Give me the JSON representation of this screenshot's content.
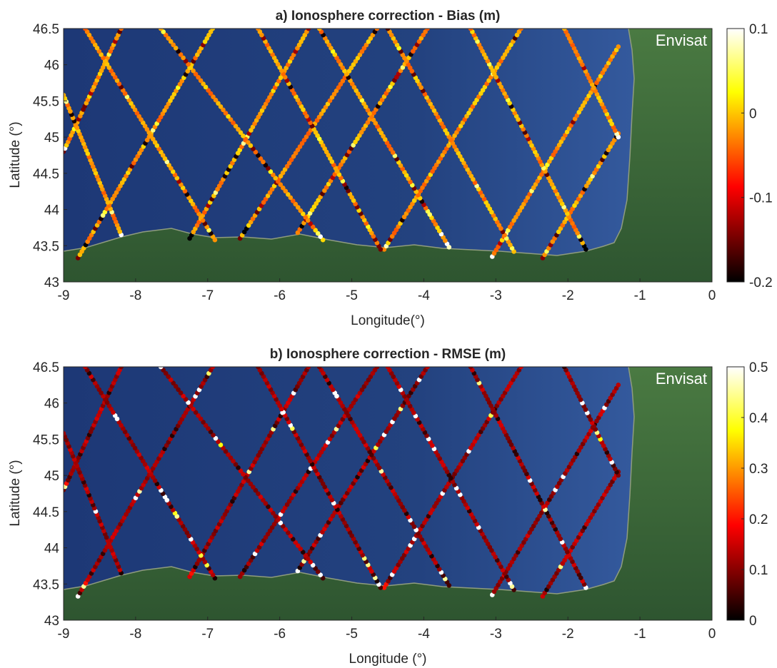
{
  "chart_data": [
    {
      "type": "scatter",
      "title": "a) Ionosphere correction - Bias (m)",
      "xlabel": "Longitude(°)",
      "ylabel": "Latitude (°)",
      "xlim": [
        -9,
        0
      ],
      "ylim": [
        43,
        46.5
      ],
      "xticks": [
        -9,
        -8,
        -7,
        -6,
        -5,
        -4,
        -3,
        -2,
        -1,
        0
      ],
      "yticks": [
        43,
        43.5,
        44,
        44.5,
        45,
        45.5,
        46,
        46.5
      ],
      "xtick_labels": [
        "-9",
        "-8",
        "-7",
        "-6",
        "-5",
        "-4",
        "-3",
        "-2",
        "-1",
        "0"
      ],
      "ytick_labels": [
        "43",
        "43.5",
        "44",
        "44.5",
        "45",
        "45.5",
        "46",
        "46.5"
      ],
      "annotation": "Envisat",
      "colorbar": {
        "ticks": [
          0.1,
          0,
          -0.1,
          -0.2
        ],
        "tick_labels": [
          "0.1",
          "0",
          "-0.1",
          "-0.2"
        ],
        "range": [
          -0.2,
          0.1
        ],
        "colormap": "hot"
      },
      "tracks": [
        {
          "direction": "ascending",
          "lon_south": -8.8,
          "lat_south": 43.33,
          "lon_north": -6.93,
          "lat_north": 46.5
        },
        {
          "direction": "ascending",
          "lon_south": -7.25,
          "lat_south": 43.6,
          "lon_north": -5.6,
          "lat_north": 46.5
        },
        {
          "direction": "ascending",
          "lon_south": -6.55,
          "lat_south": 43.6,
          "lon_north": -4.65,
          "lat_north": 46.5
        },
        {
          "direction": "ascending",
          "lon_south": -5.75,
          "lat_south": 43.68,
          "lon_north": -3.95,
          "lat_north": 46.5
        },
        {
          "direction": "ascending",
          "lon_south": -4.55,
          "lat_south": 43.45,
          "lon_north": -2.65,
          "lat_north": 46.5
        },
        {
          "direction": "ascending",
          "lon_south": -3.05,
          "lat_south": 43.35,
          "lon_north": -1.3,
          "lat_north": 46.25
        },
        {
          "direction": "ascending",
          "lon_south": -2.35,
          "lat_south": 43.33,
          "lon_north": -1.3,
          "lat_north": 45.05
        },
        {
          "direction": "ascending",
          "lon_south": -9.0,
          "lat_south": 44.8,
          "lon_north": -8.2,
          "lat_north": 46.5
        },
        {
          "direction": "descending",
          "lon_north": -8.7,
          "lat_north": 46.5,
          "lon_south": -6.9,
          "lat_south": 43.58
        },
        {
          "direction": "descending",
          "lon_north": -7.65,
          "lat_north": 46.5,
          "lon_south": -5.4,
          "lat_south": 43.58
        },
        {
          "direction": "descending",
          "lon_north": -6.3,
          "lat_north": 46.5,
          "lon_south": -4.6,
          "lat_south": 43.45
        },
        {
          "direction": "descending",
          "lon_north": -5.45,
          "lat_north": 46.5,
          "lon_south": -3.65,
          "lat_south": 43.48
        },
        {
          "direction": "descending",
          "lon_north": -4.5,
          "lat_north": 46.5,
          "lon_south": -2.75,
          "lat_south": 43.42
        },
        {
          "direction": "descending",
          "lon_north": -3.35,
          "lat_north": 46.5,
          "lon_south": -1.75,
          "lat_south": 43.45
        },
        {
          "direction": "descending",
          "lon_north": -2.05,
          "lat_north": 46.5,
          "lon_south": -1.3,
          "lat_south": 45.0
        },
        {
          "direction": "descending",
          "lon_north": -9.0,
          "lat_north": 45.58,
          "lon_south": -8.2,
          "lat_south": 43.65
        }
      ],
      "typical_value": -0.02,
      "coastal_values": [
        0.1,
        0.05,
        -0.2,
        -0.15,
        0.08
      ]
    },
    {
      "type": "scatter",
      "title": "b) Ionosphere correction - RMSE (m)",
      "xlabel": "Longitude (°)",
      "ylabel": "Latitude (°)",
      "xlim": [
        -9,
        0
      ],
      "ylim": [
        43,
        46.5
      ],
      "xticks": [
        -9,
        -8,
        -7,
        -6,
        -5,
        -4,
        -3,
        -2,
        -1,
        0
      ],
      "yticks": [
        43,
        43.5,
        44,
        44.5,
        45,
        45.5,
        46,
        46.5
      ],
      "xtick_labels": [
        "-9",
        "-8",
        "-7",
        "-6",
        "-5",
        "-4",
        "-3",
        "-2",
        "-1",
        "0"
      ],
      "ytick_labels": [
        "43",
        "43.5",
        "44",
        "44.5",
        "45",
        "45.5",
        "46",
        "46.5"
      ],
      "annotation": "Envisat",
      "colorbar": {
        "ticks": [
          0.5,
          0.4,
          0.3,
          0.2,
          0.1,
          0
        ],
        "tick_labels": [
          "0.5",
          "0.4",
          "0.3",
          "0.2",
          "0.1",
          "0"
        ],
        "range": [
          0,
          0.5
        ],
        "colormap": "hot"
      },
      "tracks": "same as panel a",
      "typical_value": 0.12,
      "coastal_values": [
        0.5,
        0.45,
        0.05,
        0.2,
        0.02
      ]
    }
  ],
  "colors": {
    "sea": "#2a4a8c",
    "sea_deep": "#1b3570",
    "land": "#3f6a3b",
    "land_dark": "#2f5530",
    "coast": "#7d8a6a"
  }
}
